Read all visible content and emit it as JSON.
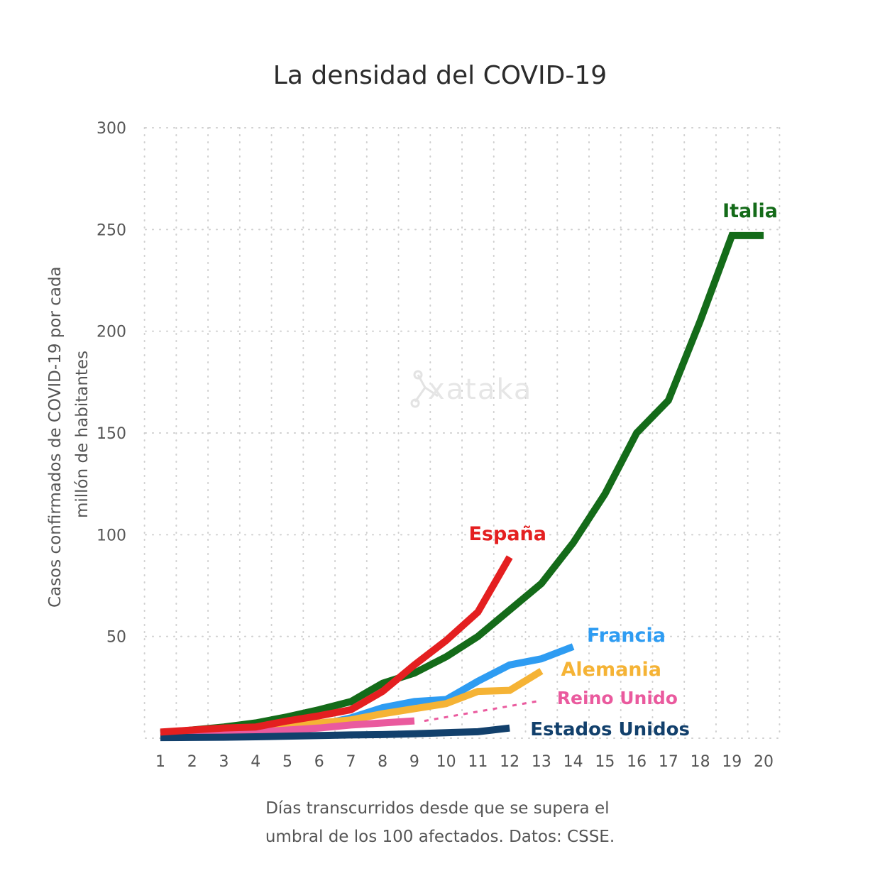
{
  "chart_data": {
    "type": "line",
    "title": "La densidad del COVID-19",
    "ylabel": [
      "Casos confirmados de COVID-19 por cada",
      "millón de habitantes"
    ],
    "xlabel": [
      "Días transcurridos desde que se supera el",
      "umbral de los 100 afectados. Datos: CSSE."
    ],
    "ylim": [
      0,
      300
    ],
    "yticks": [
      50,
      100,
      150,
      200,
      250,
      300
    ],
    "xticks": [
      1,
      2,
      3,
      4,
      5,
      6,
      7,
      8,
      9,
      10,
      11,
      12,
      13,
      14,
      15,
      16,
      17,
      18,
      19,
      20
    ],
    "grid": true,
    "watermark": "xataka",
    "series": [
      {
        "name": "Italia",
        "color": "#146b19",
        "dashed_from": null,
        "x": [
          1,
          2,
          3,
          4,
          5,
          6,
          7,
          8,
          9,
          10,
          11,
          12,
          13,
          14,
          15,
          16,
          17,
          18,
          19,
          20
        ],
        "y": [
          2.5,
          4,
          5.5,
          7.5,
          10.5,
          14,
          18,
          27,
          32,
          40,
          50,
          63,
          76,
          96,
          120,
          150,
          166,
          205,
          247,
          247
        ]
      },
      {
        "name": "España",
        "color": "#e41f20",
        "dashed_from": null,
        "x": [
          1,
          2,
          3,
          4,
          5,
          6,
          7,
          8,
          9,
          10,
          11,
          12
        ],
        "y": [
          3,
          4,
          5,
          5.5,
          8.5,
          11,
          14,
          23,
          36,
          48,
          62,
          89
        ]
      },
      {
        "name": "Francia",
        "color": "#2e9cf2",
        "dashed_from": null,
        "x": [
          1,
          2,
          3,
          4,
          5,
          6,
          7,
          8,
          9,
          10,
          11,
          12,
          13,
          14
        ],
        "y": [
          2,
          2.5,
          3,
          3.5,
          4.5,
          6.5,
          10,
          15,
          18,
          19,
          28,
          36,
          39,
          45
        ]
      },
      {
        "name": "Alemania",
        "color": "#f5b335",
        "dashed_from": null,
        "x": [
          1,
          2,
          3,
          4,
          5,
          6,
          7,
          8,
          9,
          10,
          11,
          12,
          13
        ],
        "y": [
          1.5,
          2,
          3,
          4,
          6,
          7.5,
          9,
          12,
          14.5,
          17,
          23,
          23.5,
          33
        ]
      },
      {
        "name": "Reino Unido",
        "color": "#ea5a9e",
        "dashed_from": 9,
        "x": [
          1,
          2,
          3,
          4,
          5,
          6,
          7,
          8,
          9,
          13
        ],
        "y": [
          1.5,
          2,
          2.5,
          3,
          4,
          5,
          6.5,
          7.5,
          8.5,
          18.5
        ]
      },
      {
        "name": "Estados Unidos",
        "color": "#12406c",
        "dashed_from": null,
        "x": [
          1,
          2,
          3,
          4,
          5,
          6,
          7,
          8,
          9,
          10,
          11,
          12
        ],
        "y": [
          0.3,
          0.4,
          0.5,
          0.7,
          1,
          1.3,
          1.6,
          1.8,
          2.2,
          2.7,
          3.2,
          5
        ]
      }
    ]
  }
}
